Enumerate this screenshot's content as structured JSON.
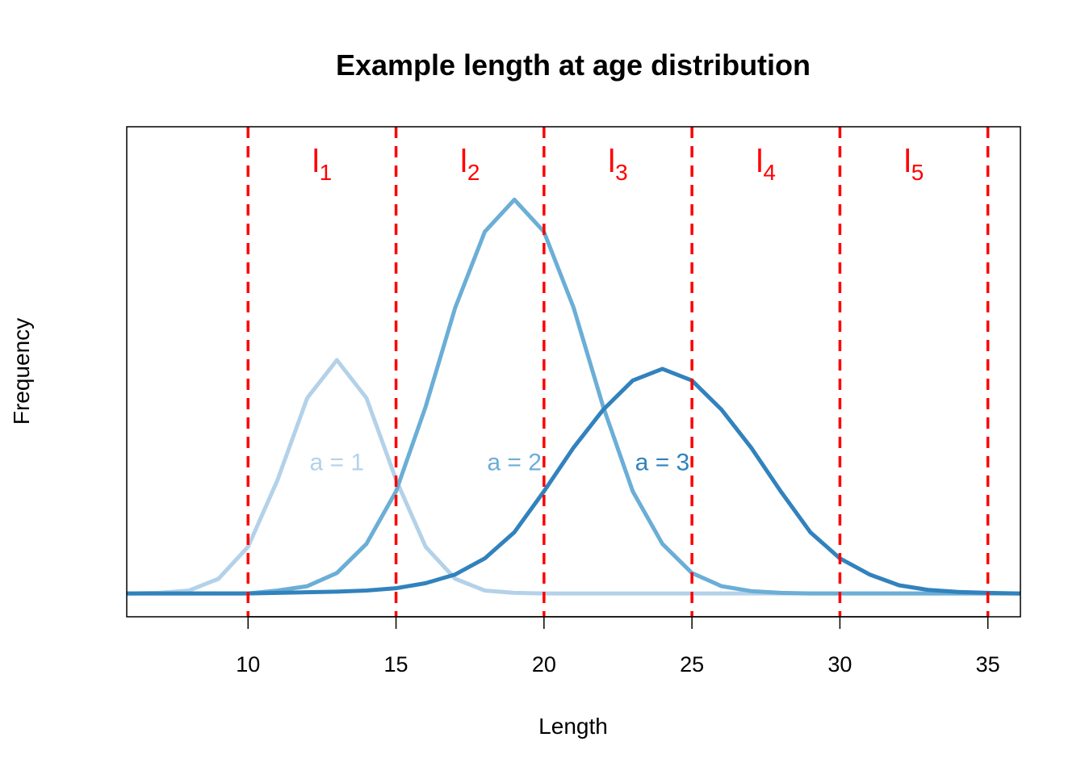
{
  "chart_data": {
    "type": "line",
    "title": "Example length at age distribution",
    "xlabel": "Length",
    "ylabel": "Frequency",
    "xlim": [
      5.9,
      36.1
    ],
    "ylim": [
      -0.008,
      0.16
    ],
    "xticks": [
      "10",
      "15",
      "20",
      "25",
      "30",
      "35"
    ],
    "y_axis_ticks_shown": false,
    "grid": false,
    "legend": "none",
    "x": [
      5,
      6,
      7,
      8,
      9,
      10,
      11,
      12,
      13,
      14,
      15,
      16,
      17,
      18,
      19,
      20,
      21,
      22,
      23,
      24,
      25,
      26,
      27,
      28,
      29,
      30,
      31,
      32,
      33,
      34,
      35,
      36,
      37
    ],
    "series": [
      {
        "label": "a = 1",
        "color": "#b3d2e9",
        "values": [
          0,
          0,
          0.0002,
          0.001,
          0.005,
          0.016,
          0.039,
          0.067,
          0.08,
          0.067,
          0.039,
          0.016,
          0.005,
          0.001,
          0.0002,
          0,
          0,
          0,
          0,
          0,
          0,
          0,
          0,
          0,
          0,
          0,
          0,
          0,
          0,
          0,
          0,
          0,
          0
        ],
        "label_position": [
          13,
          0.045
        ]
      },
      {
        "label": "a = 2",
        "color": "#6baed6",
        "values": [
          0,
          0,
          0,
          0,
          0,
          0,
          0.001,
          0.0025,
          0.007,
          0.017,
          0.035,
          0.064,
          0.098,
          0.124,
          0.135,
          0.124,
          0.098,
          0.064,
          0.035,
          0.017,
          0.007,
          0.0025,
          0.0008,
          0.0002,
          0,
          0,
          0,
          0,
          0,
          0,
          0,
          0,
          0
        ],
        "label_position": [
          19,
          0.045
        ]
      },
      {
        "label": "a = 3",
        "color": "#3182bd",
        "values": [
          0,
          0,
          0,
          0,
          0,
          0,
          0.0002,
          0.0004,
          0.0006,
          0.001,
          0.0018,
          0.0035,
          0.0065,
          0.012,
          0.021,
          0.035,
          0.05,
          0.063,
          0.073,
          0.077,
          0.073,
          0.063,
          0.05,
          0.035,
          0.021,
          0.012,
          0.0065,
          0.0028,
          0.0012,
          0.0005,
          0.0002,
          0,
          0
        ],
        "label_position": [
          24,
          0.045
        ]
      }
    ],
    "vertical_lines": {
      "x": [
        10,
        15,
        20,
        25,
        30,
        35
      ],
      "color": "#ff0000",
      "style": "dashed"
    },
    "interval_labels": [
      {
        "main": "l",
        "sub": "1",
        "x": 12.5
      },
      {
        "main": "l",
        "sub": "2",
        "x": 17.5
      },
      {
        "main": "l",
        "sub": "3",
        "x": 22.5
      },
      {
        "main": "l",
        "sub": "4",
        "x": 27.5
      },
      {
        "main": "l",
        "sub": "5",
        "x": 32.5
      }
    ]
  }
}
